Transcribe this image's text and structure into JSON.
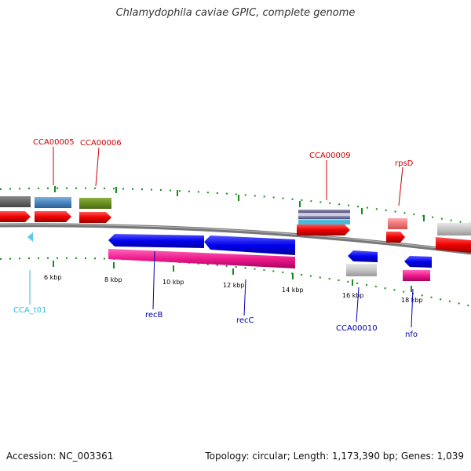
{
  "header": {
    "title": "Chlamydophila caviae GPIC, complete genome"
  },
  "footer": {
    "accession": "Accession: NC_003361",
    "summary": "Topology: circular; Length: 1,173,390 bp; Genes: 1,039"
  },
  "colors": {
    "backbone": "#777777",
    "tick": "#1a8a1a",
    "label_top": "#cc0000",
    "label_bottom": "#0000aa",
    "label_trna": "#33bbdd"
  },
  "scale": {
    "ticks": [
      "6 kbp",
      "8 kbp",
      "10 kbp",
      "12 kbp",
      "14 kbp",
      "16 kbp",
      "18 kbp"
    ]
  },
  "genes": {
    "cca00005": "CCA00005",
    "cca00006": "CCA00006",
    "cca00009": "CCA00009",
    "rpsd": "rpsD",
    "cca_t01": "CCA_t01",
    "recb": "recB",
    "recc": "recC",
    "cca00010": "CCA00010",
    "nfo": "nfo"
  }
}
